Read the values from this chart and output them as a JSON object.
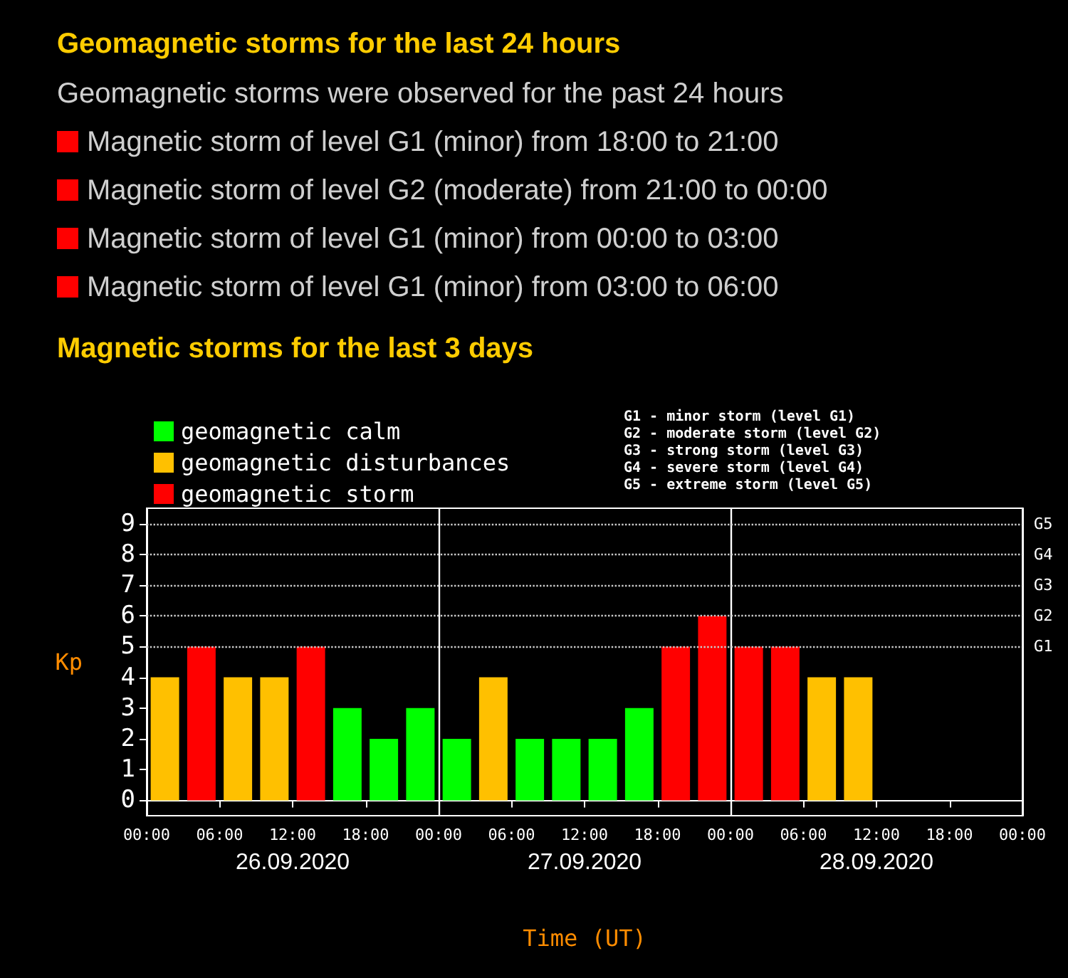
{
  "chart_data": {
    "type": "bar",
    "title": "Geomagnetic storms for the last 24 hours",
    "subtitle": "Magnetic storms for the last 3 days",
    "xlabel": "Time (UT)",
    "ylabel": "Kp",
    "x": [
      "2020-09-26T01:30",
      "2020-09-26T04:30",
      "2020-09-26T07:30",
      "2020-09-26T10:30",
      "2020-09-26T13:30",
      "2020-09-26T16:30",
      "2020-09-26T19:30",
      "2020-09-26T22:30",
      "2020-09-27T01:30",
      "2020-09-27T04:30",
      "2020-09-27T07:30",
      "2020-09-27T10:30",
      "2020-09-27T13:30",
      "2020-09-27T16:30",
      "2020-09-27T19:30",
      "2020-09-27T22:30",
      "2020-09-28T01:30",
      "2020-09-28T04:30",
      "2020-09-28T07:30",
      "2020-09-28T10:30"
    ],
    "series": [
      {
        "name": "geomagnetic calm",
        "color": "#00ff00",
        "values": [
          null,
          null,
          null,
          null,
          null,
          3,
          2,
          3,
          2,
          null,
          2,
          2,
          2,
          3,
          null,
          null,
          null,
          null,
          null,
          null
        ]
      },
      {
        "name": "geomagnetic disturbances",
        "color": "#ffc000",
        "values": [
          4,
          null,
          4,
          4,
          null,
          null,
          null,
          null,
          null,
          4,
          null,
          null,
          null,
          null,
          null,
          null,
          null,
          null,
          4,
          4
        ]
      },
      {
        "name": "geomagnetic storm",
        "color": "#ff0000",
        "values": [
          null,
          5,
          null,
          null,
          5,
          null,
          null,
          null,
          null,
          null,
          null,
          null,
          null,
          null,
          5,
          6,
          5,
          5,
          null,
          null
        ]
      }
    ],
    "xlim": [
      "2020-09-26T00:00",
      "2020-09-29T00:00"
    ],
    "xticks": [
      {
        "value": "2020-09-26T00:00",
        "label": "00:00"
      },
      {
        "value": "2020-09-26T06:00",
        "label": "06:00"
      },
      {
        "value": "2020-09-26T12:00",
        "label": "12:00"
      },
      {
        "value": "2020-09-26T18:00",
        "label": "18:00"
      },
      {
        "value": "2020-09-27T00:00",
        "label": "00:00"
      },
      {
        "value": "2020-09-27T06:00",
        "label": "06:00"
      },
      {
        "value": "2020-09-27T12:00",
        "label": "12:00"
      },
      {
        "value": "2020-09-27T18:00",
        "label": "18:00"
      },
      {
        "value": "2020-09-28T00:00",
        "label": "00:00"
      },
      {
        "value": "2020-09-28T06:00",
        "label": "06:00"
      },
      {
        "value": "2020-09-28T12:00",
        "label": "12:00"
      },
      {
        "value": "2020-09-28T18:00",
        "label": "18:00"
      },
      {
        "value": "2020-09-29T00:00",
        "label": "00:00"
      }
    ],
    "ylim": [
      -0.5,
      9.5
    ],
    "yticks": [
      0,
      1,
      2,
      3,
      4,
      5,
      6,
      7,
      8,
      9
    ],
    "ref_lines": [
      {
        "axis": "x",
        "value": "2020-09-27T00:00",
        "color": "#ffffff"
      },
      {
        "axis": "x",
        "value": "2020-09-28T00:00",
        "color": "#ffffff"
      },
      {
        "axis": "y",
        "value": 5,
        "label": "G1",
        "color": "#cccccc",
        "line_style": "dotted"
      },
      {
        "axis": "y",
        "value": 6,
        "label": "G2",
        "color": "#cccccc",
        "line_style": "dotted"
      },
      {
        "axis": "y",
        "value": 7,
        "label": "G3",
        "color": "#cccccc",
        "line_style": "dotted"
      },
      {
        "axis": "y",
        "value": 8,
        "label": "G4",
        "color": "#cccccc",
        "line_style": "dotted"
      },
      {
        "axis": "y",
        "value": 9,
        "label": "G5",
        "color": "#cccccc",
        "line_style": "dotted"
      }
    ],
    "legend": "top left",
    "annotations": [
      "Geomagnetic storms were observed for the past 24 hours",
      "Magnetic storm of level G1 (minor) from 18:00 to 21:00",
      "Magnetic storm of level G2 (moderate) from 21:00 to 00:00",
      "Magnetic storm of level G1 (minor) from 00:00 to 03:00",
      "Magnetic storm of level G1 (minor) from 03:00 to 06:00",
      "G1 - minor storm (level G1)",
      "G2 - moderate storm (level G2)",
      "G3 - strong storm (level G3)",
      "G4 - severe storm (level G4)",
      "G5 - extreme storm (level G5)",
      "26.09.2020",
      "27.09.2020",
      "28.09.2020"
    ]
  }
}
